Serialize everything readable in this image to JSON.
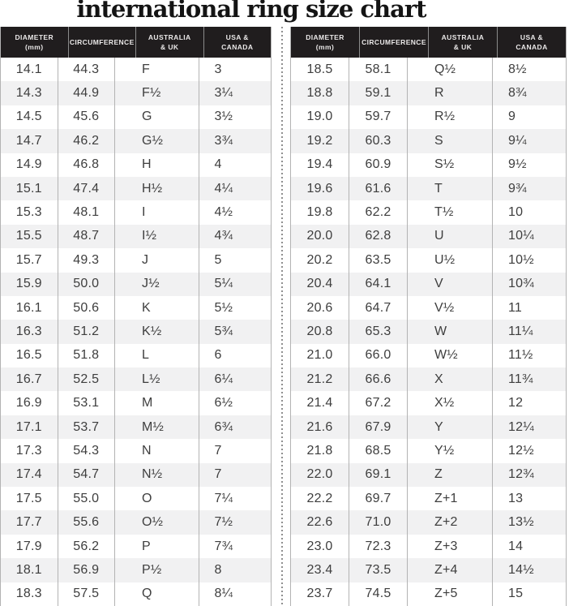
{
  "title": "international ring size chart",
  "columns": [
    {
      "l1": "DIAMETER",
      "l2": "(mm)"
    },
    {
      "l1": "CIRCUMFERENCE",
      "l2": ""
    },
    {
      "l1": "AUSTRALIA",
      "l2": "& UK"
    },
    {
      "l1": "USA &",
      "l2": "CANADA"
    }
  ],
  "chart_data": {
    "type": "table",
    "title": "international ring size chart",
    "columns": [
      "Diameter (mm)",
      "Circumference",
      "Australia & UK",
      "USA & Canada"
    ],
    "left_rows": [
      [
        "14.1",
        "44.3",
        "F",
        "3"
      ],
      [
        "14.3",
        "44.9",
        "F½",
        "3¼"
      ],
      [
        "14.5",
        "45.6",
        "G",
        "3½"
      ],
      [
        "14.7",
        "46.2",
        "G½",
        "3¾"
      ],
      [
        "14.9",
        "46.8",
        "H",
        "4"
      ],
      [
        "15.1",
        "47.4",
        "H½",
        "4¼"
      ],
      [
        "15.3",
        "48.1",
        "I",
        "4½"
      ],
      [
        "15.5",
        "48.7",
        "I½",
        "4¾"
      ],
      [
        "15.7",
        "49.3",
        "J",
        "5"
      ],
      [
        "15.9",
        "50.0",
        "J½",
        "5¼"
      ],
      [
        "16.1",
        "50.6",
        "K",
        "5½"
      ],
      [
        "16.3",
        "51.2",
        "K½",
        "5¾"
      ],
      [
        "16.5",
        "51.8",
        "L",
        "6"
      ],
      [
        "16.7",
        "52.5",
        "L½",
        "6¼"
      ],
      [
        "16.9",
        "53.1",
        "M",
        "6½"
      ],
      [
        "17.1",
        "53.7",
        "M½",
        "6¾"
      ],
      [
        "17.3",
        "54.3",
        "N",
        "7"
      ],
      [
        "17.4",
        "54.7",
        "N½",
        "7"
      ],
      [
        "17.5",
        "55.0",
        "O",
        "7¼"
      ],
      [
        "17.7",
        "55.6",
        "O½",
        "7½"
      ],
      [
        "17.9",
        "56.2",
        "P",
        "7¾"
      ],
      [
        "18.1",
        "56.9",
        "P½",
        "8"
      ],
      [
        "18.3",
        "57.5",
        "Q",
        "8¼"
      ]
    ],
    "right_rows": [
      [
        "18.5",
        "58.1",
        "Q½",
        "8½"
      ],
      [
        "18.8",
        "59.1",
        "R",
        "8¾"
      ],
      [
        "19.0",
        "59.7",
        "R½",
        "9"
      ],
      [
        "19.2",
        "60.3",
        "S",
        "9¼"
      ],
      [
        "19.4",
        "60.9",
        "S½",
        "9½"
      ],
      [
        "19.6",
        "61.6",
        "T",
        "9¾"
      ],
      [
        "19.8",
        "62.2",
        "T½",
        "10"
      ],
      [
        "20.0",
        "62.8",
        "U",
        "10¼"
      ],
      [
        "20.2",
        "63.5",
        "U½",
        "10½"
      ],
      [
        "20.4",
        "64.1",
        "V",
        "10¾"
      ],
      [
        "20.6",
        "64.7",
        "V½",
        "11"
      ],
      [
        "20.8",
        "65.3",
        "W",
        "11¼"
      ],
      [
        "21.0",
        "66.0",
        "W½",
        "11½"
      ],
      [
        "21.2",
        "66.6",
        "X",
        "11¾"
      ],
      [
        "21.4",
        "67.2",
        "X½",
        "12"
      ],
      [
        "21.6",
        "67.9",
        "Y",
        "12¼"
      ],
      [
        "21.8",
        "68.5",
        "Y½",
        "12½"
      ],
      [
        "22.0",
        "69.1",
        "Z",
        "12¾"
      ],
      [
        "22.2",
        "69.7",
        "Z+1",
        "13"
      ],
      [
        "22.6",
        "71.0",
        "Z+2",
        "13½"
      ],
      [
        "23.0",
        "72.3",
        "Z+3",
        "14"
      ],
      [
        "23.4",
        "73.5",
        "Z+4",
        "14½"
      ],
      [
        "23.7",
        "74.5",
        "Z+5",
        "15"
      ]
    ]
  },
  "colors": {
    "header_bg": "#201d1e",
    "header_text": "#eae8e8",
    "stripe": "#f1f1f2",
    "separator": "#b3b3b3",
    "text": "#3e3e3e",
    "title_text": "#141414",
    "divider_dots": "#8f8f8f"
  }
}
